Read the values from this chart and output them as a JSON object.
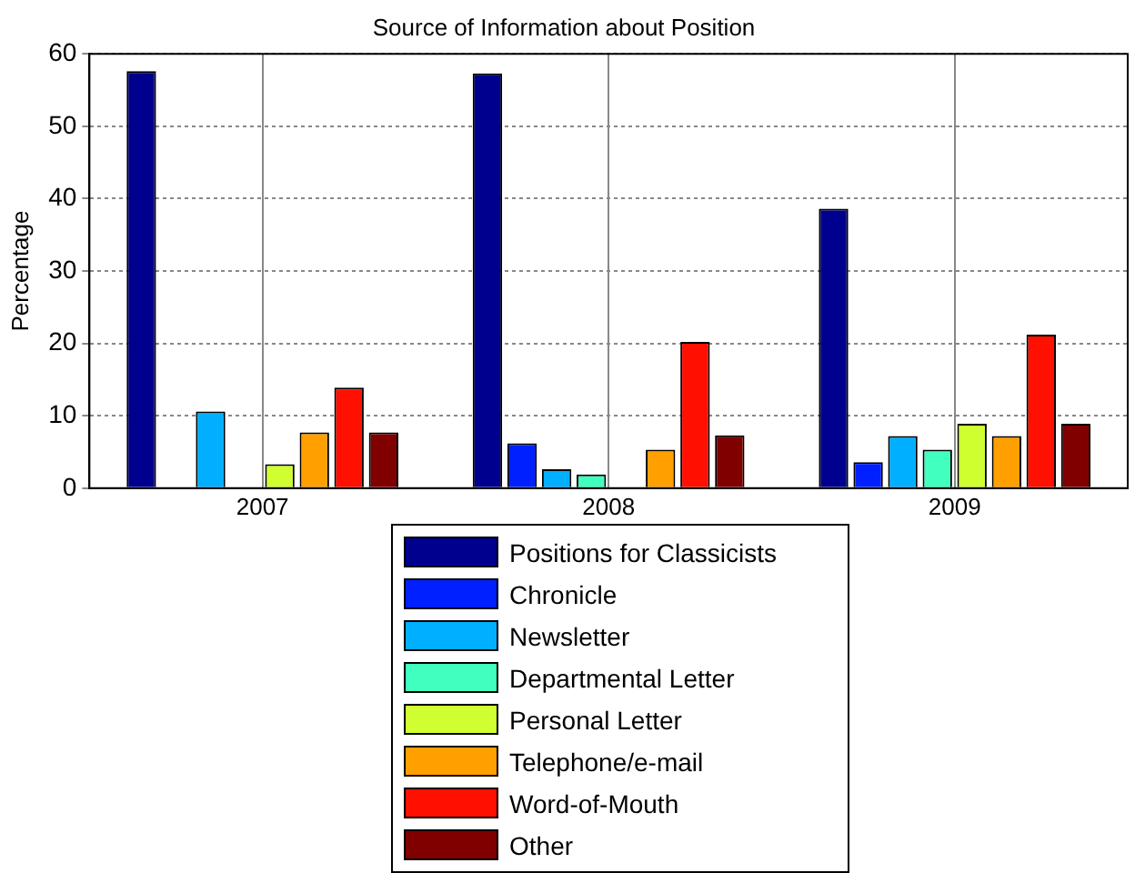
{
  "chart_data": {
    "type": "bar",
    "title": "Source of Information about Position",
    "ylabel": "Percentage",
    "categories": [
      "2007",
      "2008",
      "2009"
    ],
    "series": [
      {
        "name": "Positions for Classicists",
        "color": "#00008f",
        "values": [
          57.6,
          57.3,
          38.6
        ]
      },
      {
        "name": "Chronicle",
        "color": "#0020ff",
        "values": [
          0,
          6.2,
          3.6
        ]
      },
      {
        "name": "Newsletter",
        "color": "#00afff",
        "values": [
          10.6,
          2.6,
          7.2
        ]
      },
      {
        "name": "Departmental Letter",
        "color": "#40ffbf",
        "values": [
          0,
          1.9,
          5.3
        ]
      },
      {
        "name": "Personal Letter",
        "color": "#cfff30",
        "values": [
          3.3,
          0,
          8.9
        ]
      },
      {
        "name": "Telephone/e-mail",
        "color": "#ff9f00",
        "values": [
          7.7,
          5.3,
          7.2
        ]
      },
      {
        "name": "Word-of-Mouth",
        "color": "#ff1000",
        "values": [
          13.9,
          20.2,
          21.2
        ]
      },
      {
        "name": "Other",
        "color": "#800000",
        "values": [
          7.7,
          7.3,
          8.9
        ]
      }
    ],
    "ylim": [
      0,
      60
    ],
    "yticks": [
      0,
      10,
      20,
      30,
      40,
      50,
      60
    ],
    "grid": true,
    "legend": "bottom"
  }
}
